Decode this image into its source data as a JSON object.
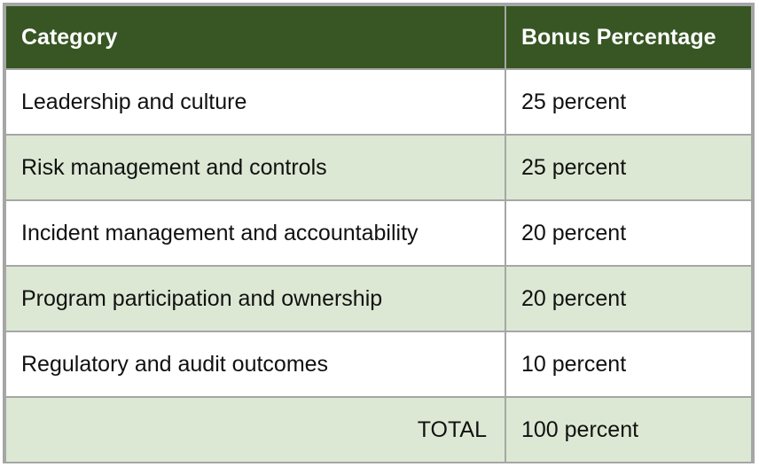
{
  "table": {
    "headers": [
      "Category",
      "Bonus Percentage"
    ],
    "rows": [
      {
        "category": "Leadership and culture",
        "percentage": "25 percent"
      },
      {
        "category": "Risk management and controls",
        "percentage": "25 percent"
      },
      {
        "category": "Incident management and accountability",
        "percentage": "20 percent"
      },
      {
        "category": "Program participation and ownership",
        "percentage": "20 percent"
      },
      {
        "category": "Regulatory and audit outcomes",
        "percentage": "10 percent"
      }
    ],
    "total": {
      "label": "TOTAL",
      "percentage": "100 percent"
    }
  },
  "colors": {
    "header_background": "#375623",
    "header_text": "#ffffff",
    "alt_row_background": "#dce8d4",
    "border": "#a6a6a6"
  }
}
